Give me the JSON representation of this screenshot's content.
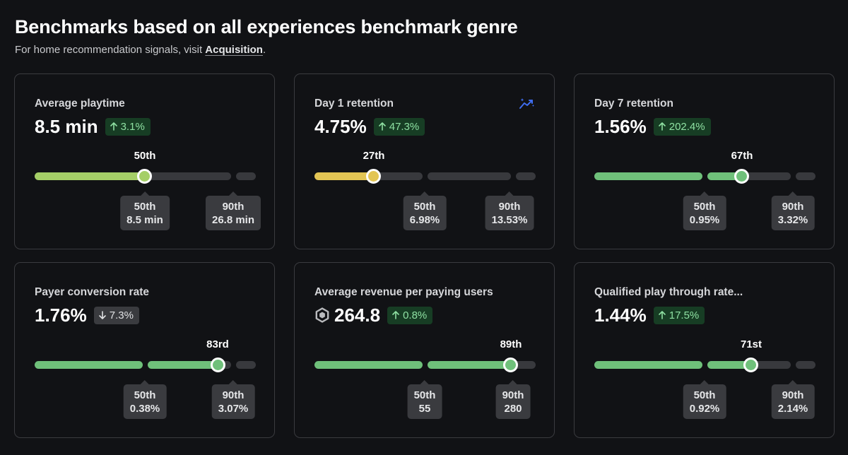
{
  "header": {
    "title": "Benchmarks based on all experiences benchmark genre",
    "subtitle_prefix": "For home recommendation signals, visit ",
    "subtitle_link": "Acquisition",
    "subtitle_suffix": "."
  },
  "colors": {
    "positive_text": "#8ee0a2",
    "positive_bg": "#173d24",
    "bar_green": "#6fc07a",
    "bar_yellow": "#e3c554",
    "bar_lime": "#a5cf67",
    "track_gray": "#38393d",
    "trend_icon": "#3f6df0"
  },
  "cards": [
    {
      "title": "Average playtime",
      "value": "8.5 min",
      "delta": "3.1%",
      "delta_direction": "up",
      "percentile_label": "50th",
      "percentile": 50,
      "bar_color": "lime",
      "p50_label": "50th",
      "p50_value": "8.5 min",
      "p90_label": "90th",
      "p90_value": "26.8 min"
    },
    {
      "title": "Day 1 retention",
      "value": "4.75%",
      "delta": "47.3%",
      "delta_direction": "up",
      "percentile_label": "27th",
      "percentile": 27,
      "bar_color": "yellow",
      "p50_label": "50th",
      "p50_value": "6.98%",
      "p90_label": "90th",
      "p90_value": "13.53%",
      "trend_icon": "trending-sparkle-icon"
    },
    {
      "title": "Day 7 retention",
      "value": "1.56%",
      "delta": "202.4%",
      "delta_direction": "up",
      "percentile_label": "67th",
      "percentile": 67,
      "bar_color": "green",
      "p50_label": "50th",
      "p50_value": "0.95%",
      "p90_label": "90th",
      "p90_value": "3.32%"
    },
    {
      "title": "Payer conversion rate",
      "value": "1.76%",
      "delta": "7.3%",
      "delta_direction": "down",
      "percentile_label": "83rd",
      "percentile": 83,
      "bar_color": "green",
      "p50_label": "50th",
      "p50_value": "0.38%",
      "p90_label": "90th",
      "p90_value": "3.07%"
    },
    {
      "title": "Average revenue per paying users",
      "value": "264.8",
      "value_icon": "robux-coin-icon",
      "delta": "0.8%",
      "delta_direction": "up",
      "percentile_label": "89th",
      "percentile": 89,
      "bar_color": "green",
      "p50_label": "50th",
      "p50_value": "55",
      "p90_label": "90th",
      "p90_value": "280"
    },
    {
      "title": "Qualified play through rate...",
      "value": "1.44%",
      "delta": "17.5%",
      "delta_direction": "up",
      "percentile_label": "71st",
      "percentile": 71,
      "bar_color": "green",
      "p50_label": "50th",
      "p50_value": "0.92%",
      "p90_label": "90th",
      "p90_value": "2.14%"
    }
  ]
}
